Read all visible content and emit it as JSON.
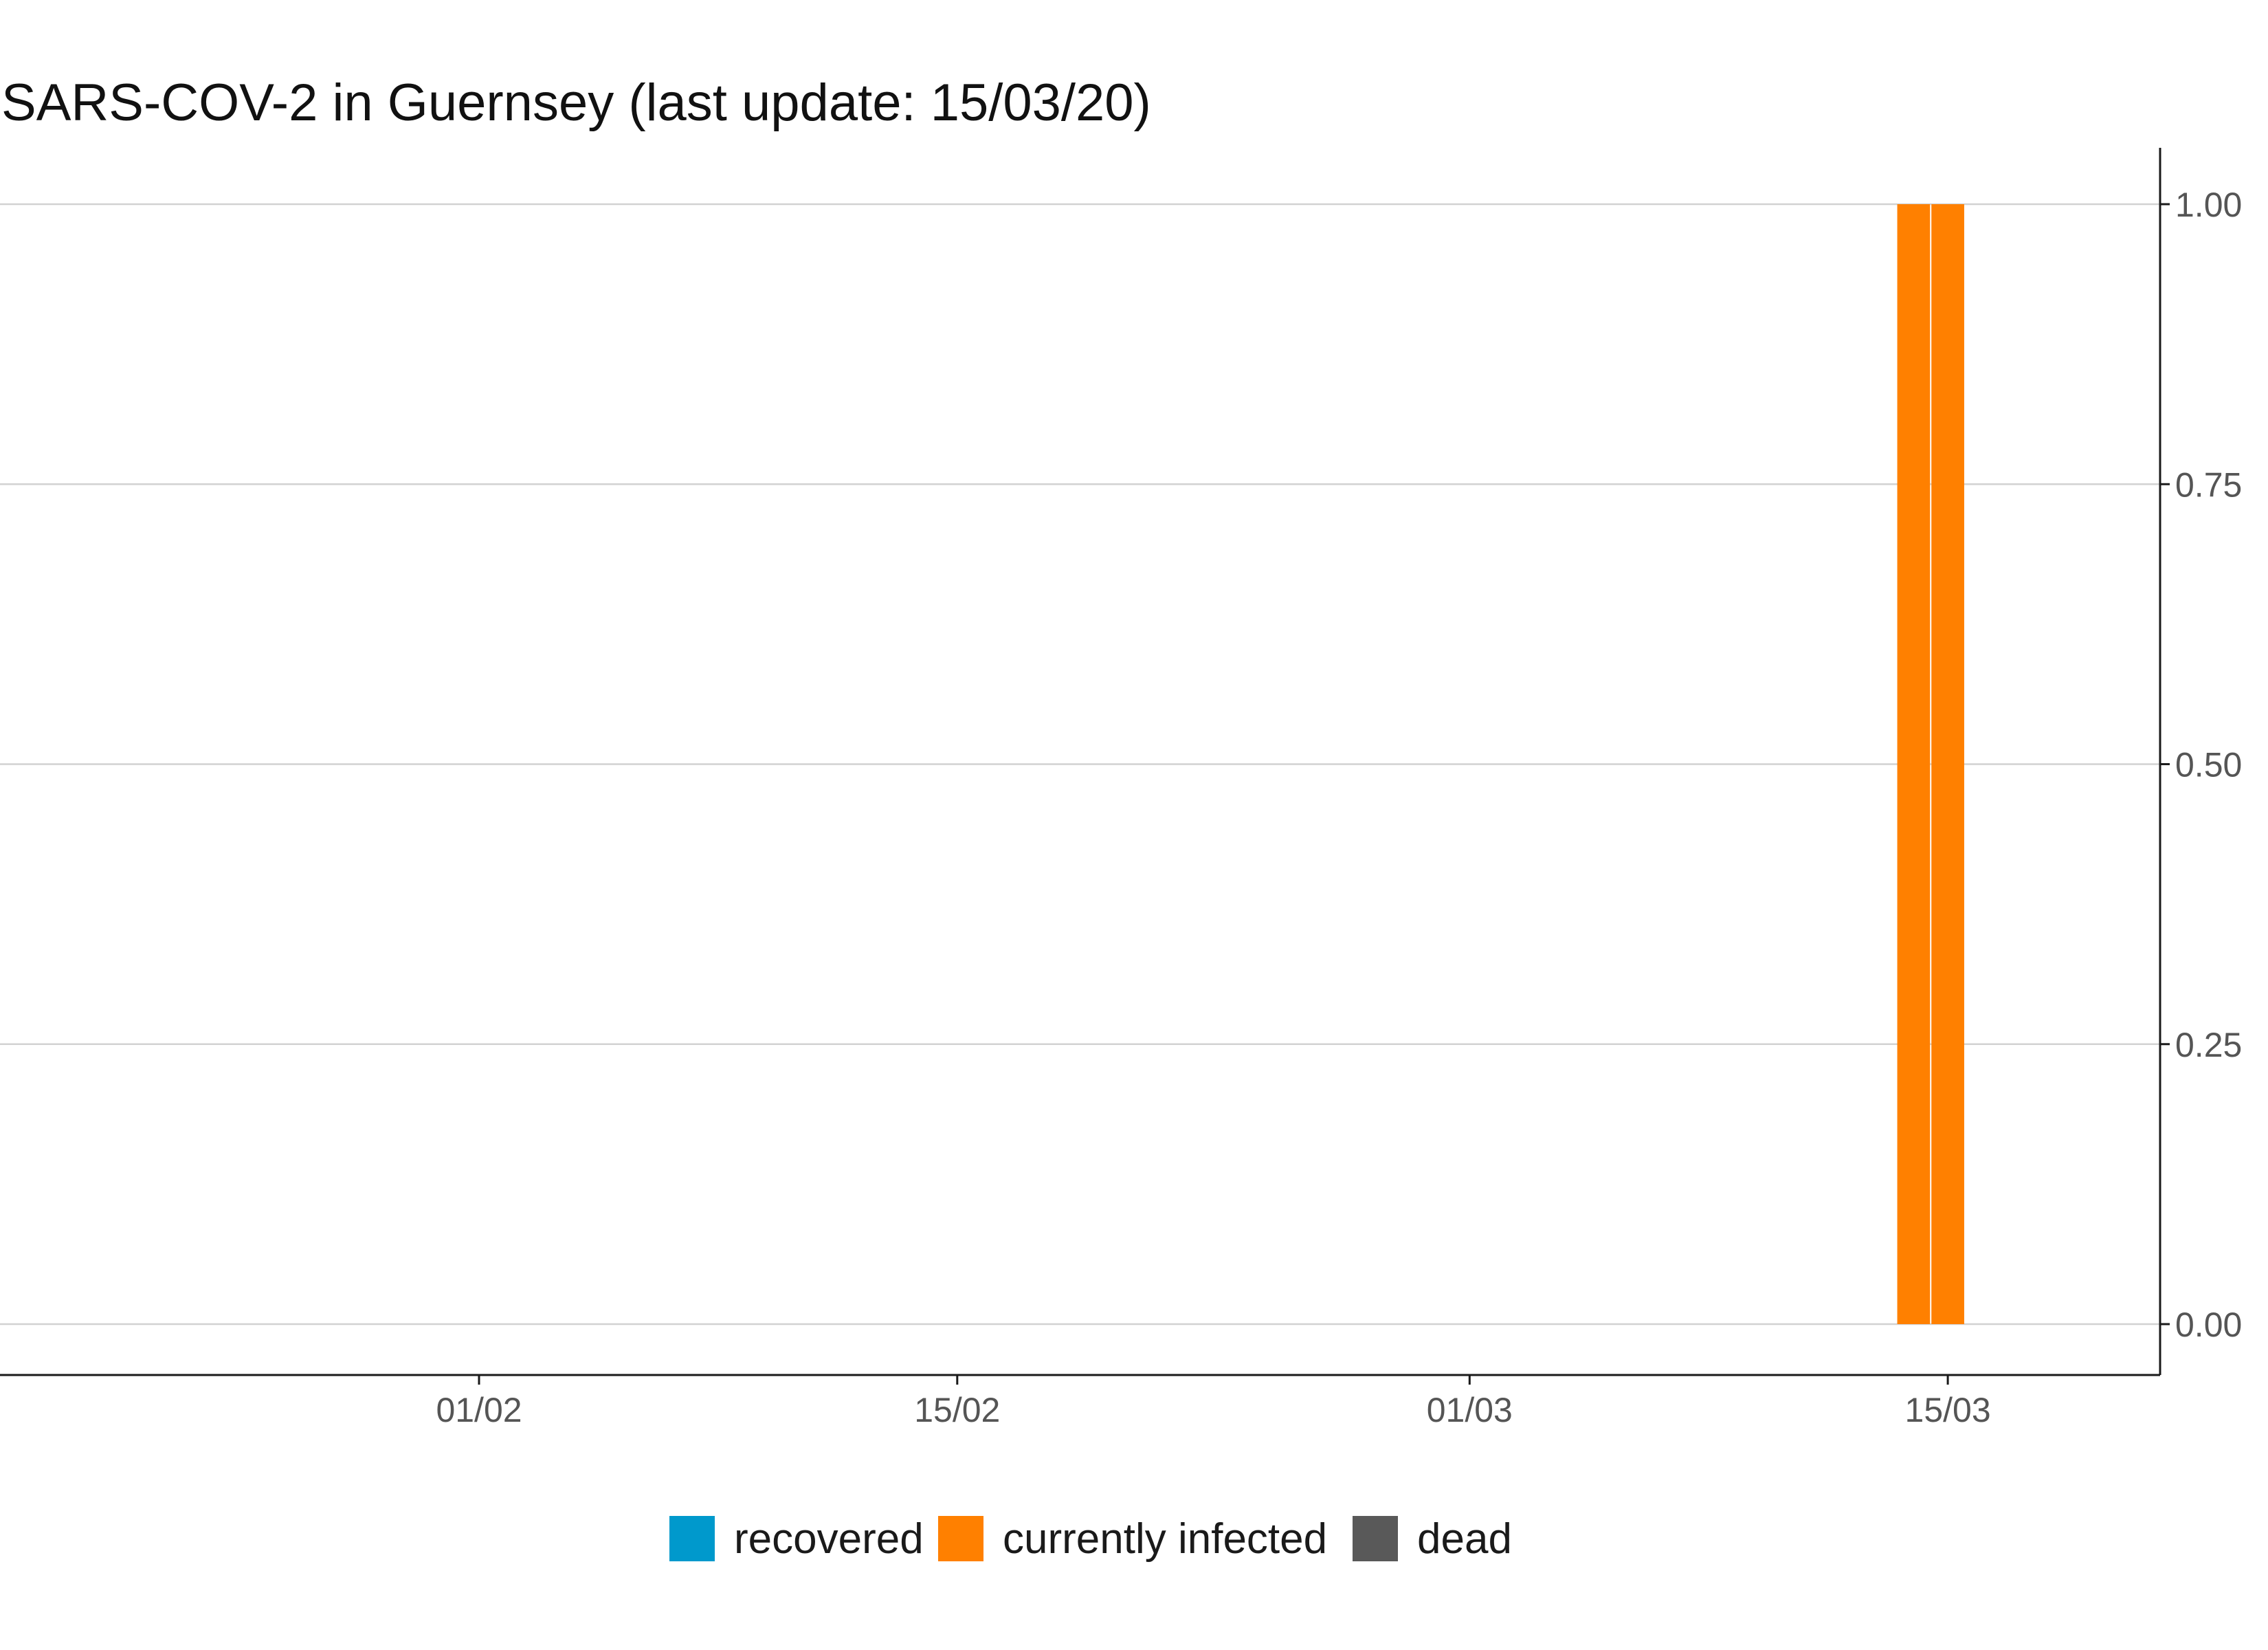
{
  "chart_data": {
    "type": "bar",
    "title": "SARS-COV-2 in Guernsey (last update: 15/03/20)",
    "xlabel": "",
    "ylabel": "",
    "x_ticks": [
      "01/02",
      "15/02",
      "01/03",
      "15/03"
    ],
    "y_ticks": [
      "0.00",
      "0.25",
      "0.50",
      "0.75",
      "1.00"
    ],
    "ylim": [
      0,
      1
    ],
    "y_axis_position": "right",
    "grid": "horizontal",
    "legend_position": "bottom",
    "series": [
      {
        "name": "recovered",
        "color": "#0099cc",
        "values": []
      },
      {
        "name": "currently infected",
        "color": "#ff8000",
        "values": [
          {
            "date": "14/03",
            "value": 1
          },
          {
            "date": "15/03",
            "value": 1
          }
        ]
      },
      {
        "name": "dead",
        "color": "#595959",
        "values": []
      }
    ]
  }
}
